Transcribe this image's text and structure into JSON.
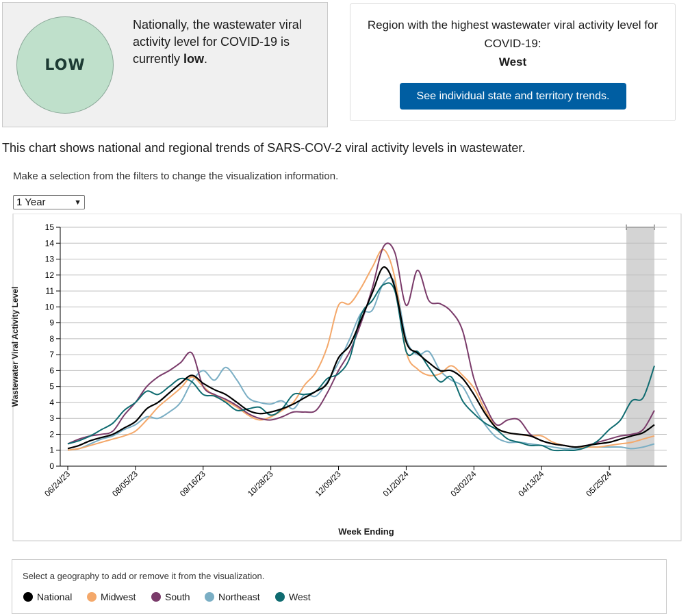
{
  "summary": {
    "level_badge": "LOW",
    "national_text_prefix": "Nationally, the wastewater viral activity level for COVID-19 is currently ",
    "national_level": "low",
    "national_text_suffix": "."
  },
  "region": {
    "heading": "Region with the highest wastewater viral activity level for COVID-19:",
    "name": "West",
    "button_label": "See individual state and territory trends."
  },
  "intro_text": "This chart shows national and regional trends of SARS-COV-2 viral activity levels in wastewater.",
  "filter_instructions": "Make a selection from the filters to change the visualization information.",
  "time_range": {
    "selected": "1 Year"
  },
  "legend": {
    "hint": "Select a geography to add or remove it from the visualization.",
    "items": [
      {
        "name": "National",
        "color": "#000000"
      },
      {
        "name": "Midwest",
        "color": "#f4a86a"
      },
      {
        "name": "South",
        "color": "#7a3b6a"
      },
      {
        "name": "Northeast",
        "color": "#7aaec4"
      },
      {
        "name": "West",
        "color": "#0f6b70"
      }
    ]
  },
  "chart_data": {
    "type": "line",
    "title": "",
    "xlabel": "Week Ending",
    "ylabel": "Wastewater Viral Activity Level",
    "ylim": [
      0,
      15
    ],
    "y_ticks": [
      0,
      1,
      2,
      3,
      4,
      5,
      6,
      7,
      8,
      9,
      10,
      11,
      12,
      13,
      14,
      15
    ],
    "grid": "horizontal",
    "x_tick_labels": [
      "06/24/23",
      "08/05/23",
      "09/16/23",
      "10/28/23",
      "12/09/23",
      "01/20/24",
      "03/02/24",
      "04/13/24",
      "05/25/24"
    ],
    "x_tick_index": [
      0,
      6,
      12,
      18,
      24,
      30,
      36,
      42,
      48
    ],
    "highlight": {
      "from_index": 50,
      "to_index": 52,
      "note": "provisional"
    },
    "x": [
      "06/24/23",
      "07/01/23",
      "07/08/23",
      "07/15/23",
      "07/22/23",
      "07/29/23",
      "08/05/23",
      "08/12/23",
      "08/19/23",
      "08/26/23",
      "09/02/23",
      "09/09/23",
      "09/16/23",
      "09/23/23",
      "09/30/23",
      "10/07/23",
      "10/14/23",
      "10/21/23",
      "10/28/23",
      "11/04/23",
      "11/11/23",
      "11/18/23",
      "11/25/23",
      "12/02/23",
      "12/09/23",
      "12/16/23",
      "12/23/23",
      "12/30/23",
      "01/06/24",
      "01/13/24",
      "01/20/24",
      "01/27/24",
      "02/03/24",
      "02/10/24",
      "02/17/24",
      "02/24/24",
      "03/02/24",
      "03/09/24",
      "03/16/24",
      "03/23/24",
      "03/30/24",
      "04/06/24",
      "04/13/24",
      "04/20/24",
      "04/27/24",
      "05/04/24",
      "05/11/24",
      "05/18/24",
      "05/25/24",
      "06/01/24",
      "06/08/24",
      "06/15/24",
      "06/22/24"
    ],
    "series": [
      {
        "name": "National",
        "color": "#000000",
        "values": [
          1.1,
          1.3,
          1.6,
          1.8,
          2.0,
          2.4,
          2.8,
          3.6,
          4.0,
          4.6,
          5.2,
          5.7,
          5.2,
          4.8,
          4.5,
          4.0,
          3.5,
          3.3,
          3.4,
          3.6,
          3.9,
          4.3,
          4.7,
          5.2,
          6.8,
          7.6,
          9.2,
          10.9,
          12.5,
          11.2,
          7.8,
          7.1,
          6.5,
          6.0,
          6.0,
          5.5,
          4.5,
          3.3,
          2.4,
          2.1,
          2.0,
          1.9,
          1.6,
          1.4,
          1.3,
          1.2,
          1.3,
          1.4,
          1.5,
          1.7,
          1.9,
          2.1,
          2.6
        ]
      },
      {
        "name": "Midwest",
        "color": "#f4a86a",
        "values": [
          1.0,
          1.1,
          1.3,
          1.5,
          1.7,
          1.9,
          2.2,
          2.9,
          3.7,
          4.3,
          4.9,
          5.6,
          5.0,
          4.4,
          4.1,
          3.7,
          3.2,
          2.9,
          3.1,
          3.5,
          4.0,
          5.1,
          5.9,
          7.5,
          10.1,
          10.2,
          11.2,
          12.5,
          13.6,
          11.8,
          7.2,
          6.1,
          5.7,
          5.8,
          6.3,
          5.7,
          4.9,
          3.5,
          2.4,
          2.1,
          2.0,
          1.9,
          1.9,
          1.5,
          1.3,
          1.2,
          1.2,
          1.2,
          1.3,
          1.4,
          1.5,
          1.7,
          1.9
        ]
      },
      {
        "name": "South",
        "color": "#7a3b6a",
        "values": [
          1.4,
          1.7,
          1.9,
          2.0,
          2.2,
          3.2,
          4.0,
          5.0,
          5.6,
          6.0,
          6.5,
          7.1,
          5.0,
          4.5,
          4.2,
          3.8,
          3.3,
          3.0,
          2.9,
          3.1,
          3.4,
          3.4,
          3.5,
          4.6,
          6.0,
          7.2,
          9.0,
          11.2,
          13.8,
          13.4,
          10.1,
          12.3,
          10.4,
          10.2,
          9.7,
          8.5,
          5.5,
          3.8,
          2.6,
          2.9,
          2.9,
          2.0,
          1.6,
          1.4,
          1.3,
          1.2,
          1.3,
          1.5,
          1.7,
          1.9,
          2.0,
          2.3,
          3.5
        ]
      },
      {
        "name": "Northeast",
        "color": "#7aaec4",
        "values": [
          1.0,
          1.1,
          1.4,
          1.7,
          1.9,
          2.3,
          2.6,
          3.1,
          3.0,
          3.4,
          4.0,
          5.3,
          6.0,
          5.4,
          6.2,
          5.4,
          4.3,
          4.0,
          3.9,
          4.1,
          3.6,
          4.5,
          4.4,
          5.3,
          6.5,
          8.0,
          9.6,
          9.8,
          11.5,
          11.5,
          8.0,
          7.0,
          7.2,
          6.0,
          5.4,
          5.0,
          3.7,
          2.6,
          1.8,
          1.5,
          1.5,
          1.4,
          1.3,
          1.2,
          1.1,
          1.1,
          1.2,
          1.2,
          1.2,
          1.2,
          1.1,
          1.2,
          1.4
        ]
      },
      {
        "name": "West",
        "color": "#0f6b70",
        "values": [
          1.4,
          1.6,
          1.9,
          2.3,
          2.7,
          3.5,
          4.0,
          4.7,
          4.5,
          5.0,
          5.5,
          5.3,
          4.5,
          4.4,
          4.0,
          3.5,
          3.6,
          3.7,
          3.2,
          3.6,
          4.5,
          4.5,
          4.7,
          5.5,
          5.8,
          6.8,
          9.5,
          10.4,
          11.4,
          11.0,
          7.2,
          7.2,
          6.2,
          5.3,
          5.6,
          4.1,
          3.3,
          2.7,
          2.3,
          1.7,
          1.5,
          1.3,
          1.3,
          1.0,
          1.0,
          1.0,
          1.2,
          1.6,
          2.3,
          2.9,
          4.1,
          4.3,
          6.3
        ]
      }
    ]
  }
}
